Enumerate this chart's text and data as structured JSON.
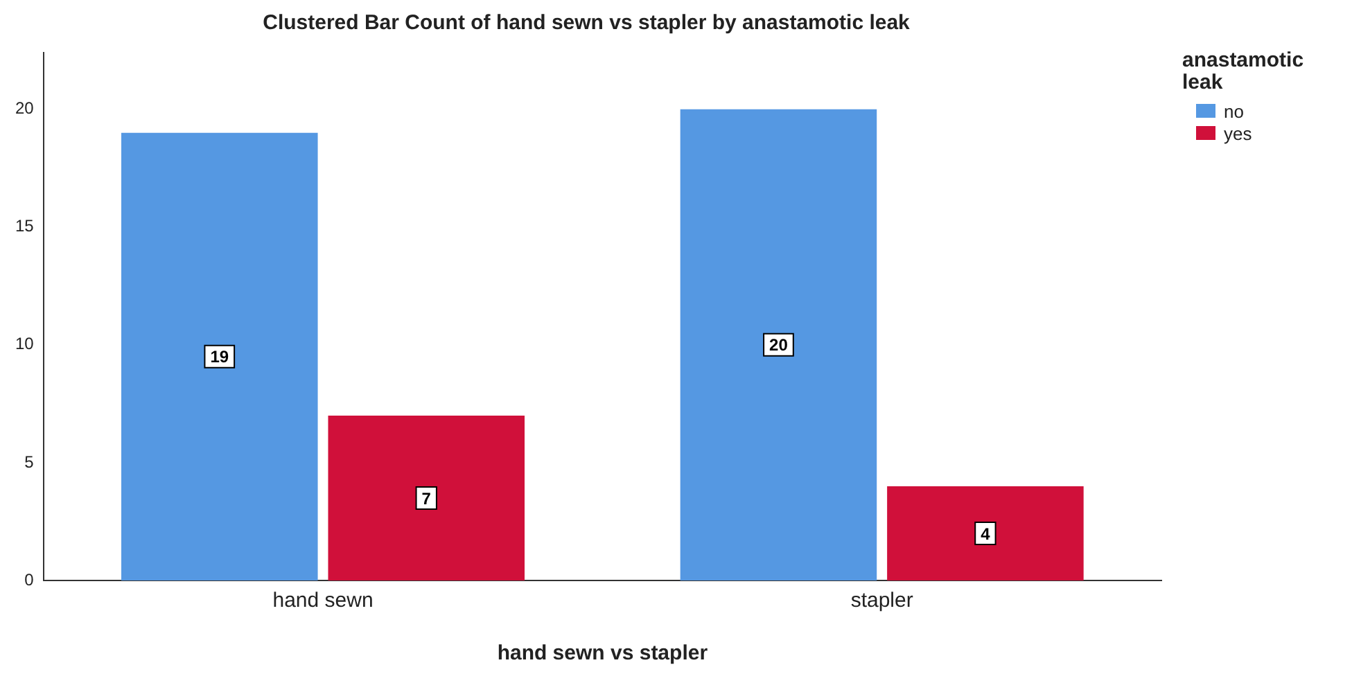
{
  "chart_data": {
    "type": "bar",
    "title": "Clustered Bar Count of hand sewn vs stapler by anastamotic leak",
    "xlabel": "hand sewn vs stapler",
    "legend_title": "anastamotic leak",
    "categories": [
      "hand sewn",
      "stapler"
    ],
    "series": [
      {
        "name": "no",
        "color": "#5598e2",
        "values": [
          19,
          20
        ]
      },
      {
        "name": "yes",
        "color": "#d0103a",
        "values": [
          7,
          4
        ]
      }
    ],
    "ylim": [
      0,
      22.4
    ],
    "yticks": [
      0,
      5,
      10,
      15,
      20
    ],
    "grid": false,
    "legend": "top right",
    "data_labels": true
  }
}
